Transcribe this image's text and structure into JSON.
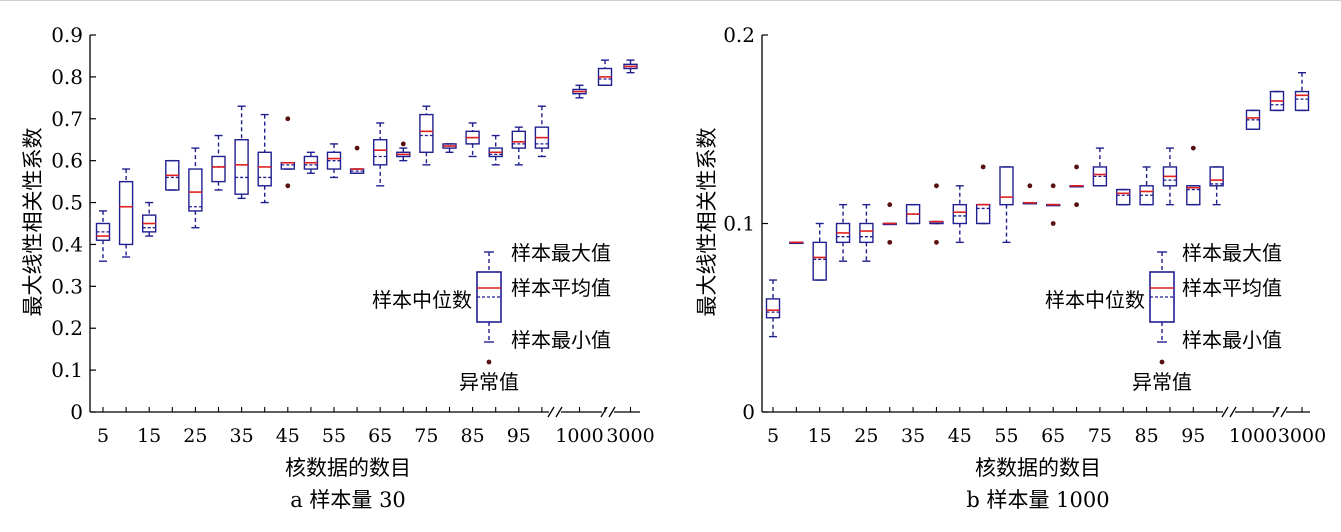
{
  "colors": {
    "box": "#1f1f8f",
    "median": "#e02020",
    "outlier": "#5a1010",
    "axis": "#000000"
  },
  "chart_data": [
    {
      "type": "box",
      "caption": "a  样本量 30",
      "xlabel": "核数据的数目",
      "ylabel": "最大线性相关性系数",
      "ylim": [
        0,
        0.9
      ],
      "yticks": [
        "0",
        "0.1",
        "0.2",
        "0.3",
        "0.4",
        "0.5",
        "0.6",
        "0.7",
        "0.8",
        "0.9"
      ],
      "xtick_labels": [
        "5",
        "15",
        "25",
        "35",
        "45",
        "55",
        "65",
        "75",
        "85",
        "95",
        "1000",
        "3000"
      ],
      "axis_breaks": true,
      "categories": [
        "5",
        "10",
        "15",
        "20",
        "25",
        "30",
        "35",
        "40",
        "45",
        "50",
        "55",
        "60",
        "65",
        "70",
        "75",
        "80",
        "85",
        "90",
        "95",
        "100",
        "1000",
        "2000",
        "3000"
      ],
      "boxes": [
        {
          "min": 0.36,
          "q1": 0.41,
          "median": 0.42,
          "mean": 0.43,
          "q3": 0.45,
          "max": 0.48,
          "outliers": []
        },
        {
          "min": 0.37,
          "q1": 0.4,
          "median": 0.49,
          "mean": 0.55,
          "q3": 0.55,
          "max": 0.58,
          "outliers": []
        },
        {
          "min": 0.42,
          "q1": 0.43,
          "median": 0.45,
          "mean": 0.44,
          "q3": 0.47,
          "max": 0.5,
          "outliers": []
        },
        {
          "min": 0.53,
          "q1": 0.53,
          "median": 0.565,
          "mean": 0.56,
          "q3": 0.6,
          "max": 0.6,
          "outliers": []
        },
        {
          "min": 0.44,
          "q1": 0.48,
          "median": 0.525,
          "mean": 0.49,
          "q3": 0.58,
          "max": 0.63,
          "outliers": []
        },
        {
          "min": 0.53,
          "q1": 0.55,
          "median": 0.585,
          "mean": 0.585,
          "q3": 0.61,
          "max": 0.66,
          "outliers": []
        },
        {
          "min": 0.51,
          "q1": 0.52,
          "median": 0.59,
          "mean": 0.56,
          "q3": 0.65,
          "max": 0.73,
          "outliers": []
        },
        {
          "min": 0.5,
          "q1": 0.54,
          "median": 0.585,
          "mean": 0.56,
          "q3": 0.62,
          "max": 0.71,
          "outliers": []
        },
        {
          "min": 0.58,
          "q1": 0.58,
          "median": 0.595,
          "mean": 0.59,
          "q3": 0.595,
          "max": 0.595,
          "outliers": [
            0.7,
            0.54
          ]
        },
        {
          "min": 0.57,
          "q1": 0.58,
          "median": 0.595,
          "mean": 0.59,
          "q3": 0.61,
          "max": 0.62,
          "outliers": []
        },
        {
          "min": 0.56,
          "q1": 0.58,
          "median": 0.605,
          "mean": 0.6,
          "q3": 0.62,
          "max": 0.64,
          "outliers": []
        },
        {
          "min": 0.57,
          "q1": 0.57,
          "median": 0.58,
          "mean": 0.575,
          "q3": 0.58,
          "max": 0.58,
          "outliers": [
            0.63
          ]
        },
        {
          "min": 0.54,
          "q1": 0.59,
          "median": 0.625,
          "mean": 0.61,
          "q3": 0.65,
          "max": 0.69,
          "outliers": []
        },
        {
          "min": 0.6,
          "q1": 0.61,
          "median": 0.615,
          "mean": 0.61,
          "q3": 0.62,
          "max": 0.63,
          "outliers": [
            0.64
          ]
        },
        {
          "min": 0.59,
          "q1": 0.62,
          "median": 0.67,
          "mean": 0.66,
          "q3": 0.71,
          "max": 0.73,
          "outliers": []
        },
        {
          "min": 0.62,
          "q1": 0.63,
          "median": 0.635,
          "mean": 0.635,
          "q3": 0.64,
          "max": 0.64,
          "outliers": []
        },
        {
          "min": 0.61,
          "q1": 0.64,
          "median": 0.655,
          "mean": 0.64,
          "q3": 0.67,
          "max": 0.69,
          "outliers": []
        },
        {
          "min": 0.59,
          "q1": 0.61,
          "median": 0.62,
          "mean": 0.615,
          "q3": 0.63,
          "max": 0.66,
          "outliers": []
        },
        {
          "min": 0.59,
          "q1": 0.63,
          "median": 0.645,
          "mean": 0.64,
          "q3": 0.67,
          "max": 0.68,
          "outliers": []
        },
        {
          "min": 0.61,
          "q1": 0.63,
          "median": 0.655,
          "mean": 0.64,
          "q3": 0.68,
          "max": 0.73,
          "outliers": []
        },
        {
          "min": 0.75,
          "q1": 0.76,
          "median": 0.765,
          "mean": 0.76,
          "q3": 0.77,
          "max": 0.78,
          "outliers": []
        },
        {
          "min": 0.78,
          "q1": 0.78,
          "median": 0.8,
          "mean": 0.795,
          "q3": 0.82,
          "max": 0.84,
          "outliers": []
        },
        {
          "min": 0.81,
          "q1": 0.82,
          "median": 0.825,
          "mean": 0.825,
          "q3": 0.83,
          "max": 0.84,
          "outliers": []
        }
      ],
      "legend": {
        "max": "样本最大值",
        "mean": "样本平均值",
        "median": "样本中位数",
        "min": "样本最小值",
        "outlier": "异常值"
      }
    },
    {
      "type": "box",
      "caption": "b  样本量 1000",
      "xlabel": "核数据的数目",
      "ylabel": "最大线性相关性系数",
      "ylim": [
        0,
        0.2
      ],
      "yticks": [
        "0",
        "0.1",
        "0.2"
      ],
      "xtick_labels": [
        "5",
        "15",
        "25",
        "35",
        "45",
        "55",
        "65",
        "75",
        "85",
        "95",
        "1000",
        "3000"
      ],
      "axis_breaks": true,
      "categories": [
        "5",
        "10",
        "15",
        "20",
        "25",
        "30",
        "35",
        "40",
        "45",
        "50",
        "55",
        "60",
        "65",
        "70",
        "75",
        "80",
        "85",
        "90",
        "95",
        "100",
        "1000",
        "2000",
        "3000"
      ],
      "boxes": [
        {
          "min": 0.04,
          "q1": 0.05,
          "median": 0.054,
          "mean": 0.053,
          "q3": 0.06,
          "max": 0.07,
          "outliers": []
        },
        {
          "min": 0.09,
          "q1": 0.09,
          "median": 0.09,
          "mean": 0.09,
          "q3": 0.09,
          "max": 0.09,
          "outliers": []
        },
        {
          "min": 0.07,
          "q1": 0.07,
          "median": 0.082,
          "mean": 0.081,
          "q3": 0.09,
          "max": 0.1,
          "outliers": []
        },
        {
          "min": 0.08,
          "q1": 0.09,
          "median": 0.095,
          "mean": 0.093,
          "q3": 0.1,
          "max": 0.11,
          "outliers": []
        },
        {
          "min": 0.08,
          "q1": 0.09,
          "median": 0.096,
          "mean": 0.093,
          "q3": 0.1,
          "max": 0.11,
          "outliers": []
        },
        {
          "min": 0.1,
          "q1": 0.1,
          "median": 0.1,
          "mean": 0.1,
          "q3": 0.1,
          "max": 0.1,
          "outliers": [
            0.11,
            0.09
          ]
        },
        {
          "min": 0.1,
          "q1": 0.1,
          "median": 0.105,
          "mean": 0.105,
          "q3": 0.11,
          "max": 0.11,
          "outliers": []
        },
        {
          "min": 0.1,
          "q1": 0.1,
          "median": 0.101,
          "mean": 0.1,
          "q3": 0.101,
          "max": 0.101,
          "outliers": [
            0.12,
            0.09
          ]
        },
        {
          "min": 0.09,
          "q1": 0.1,
          "median": 0.106,
          "mean": 0.104,
          "q3": 0.11,
          "max": 0.12,
          "outliers": []
        },
        {
          "min": 0.1,
          "q1": 0.1,
          "median": 0.11,
          "mean": 0.108,
          "q3": 0.11,
          "max": 0.11,
          "outliers": [
            0.13
          ]
        },
        {
          "min": 0.09,
          "q1": 0.11,
          "median": 0.114,
          "mean": 0.11,
          "q3": 0.13,
          "max": 0.13,
          "outliers": []
        },
        {
          "min": 0.111,
          "q1": 0.111,
          "median": 0.111,
          "mean": 0.111,
          "q3": 0.111,
          "max": 0.111,
          "outliers": [
            0.12
          ]
        },
        {
          "min": 0.11,
          "q1": 0.11,
          "median": 0.11,
          "mean": 0.11,
          "q3": 0.11,
          "max": 0.11,
          "outliers": [
            0.12,
            0.1
          ]
        },
        {
          "min": 0.12,
          "q1": 0.12,
          "median": 0.12,
          "mean": 0.12,
          "q3": 0.12,
          "max": 0.12,
          "outliers": [
            0.13,
            0.11
          ]
        },
        {
          "min": 0.12,
          "q1": 0.12,
          "median": 0.126,
          "mean": 0.125,
          "q3": 0.13,
          "max": 0.14,
          "outliers": []
        },
        {
          "min": 0.11,
          "q1": 0.11,
          "median": 0.116,
          "mean": 0.115,
          "q3": 0.118,
          "max": 0.118,
          "outliers": []
        },
        {
          "min": 0.11,
          "q1": 0.11,
          "median": 0.117,
          "mean": 0.115,
          "q3": 0.12,
          "max": 0.13,
          "outliers": []
        },
        {
          "min": 0.11,
          "q1": 0.12,
          "median": 0.125,
          "mean": 0.123,
          "q3": 0.13,
          "max": 0.14,
          "outliers": []
        },
        {
          "min": 0.11,
          "q1": 0.11,
          "median": 0.119,
          "mean": 0.118,
          "q3": 0.12,
          "max": 0.12,
          "outliers": [
            0.14
          ]
        },
        {
          "min": 0.11,
          "q1": 0.12,
          "median": 0.123,
          "mean": 0.121,
          "q3": 0.13,
          "max": 0.13,
          "outliers": []
        },
        {
          "min": 0.15,
          "q1": 0.15,
          "median": 0.156,
          "mean": 0.155,
          "q3": 0.16,
          "max": 0.16,
          "outliers": []
        },
        {
          "min": 0.16,
          "q1": 0.16,
          "median": 0.165,
          "mean": 0.163,
          "q3": 0.17,
          "max": 0.17,
          "outliers": []
        },
        {
          "min": 0.16,
          "q1": 0.16,
          "median": 0.168,
          "mean": 0.166,
          "q3": 0.17,
          "max": 0.18,
          "outliers": []
        }
      ],
      "legend": {
        "max": "样本最大值",
        "mean": "样本平均值",
        "median": "样本中位数",
        "min": "样本最小值",
        "outlier": "异常值"
      }
    }
  ]
}
